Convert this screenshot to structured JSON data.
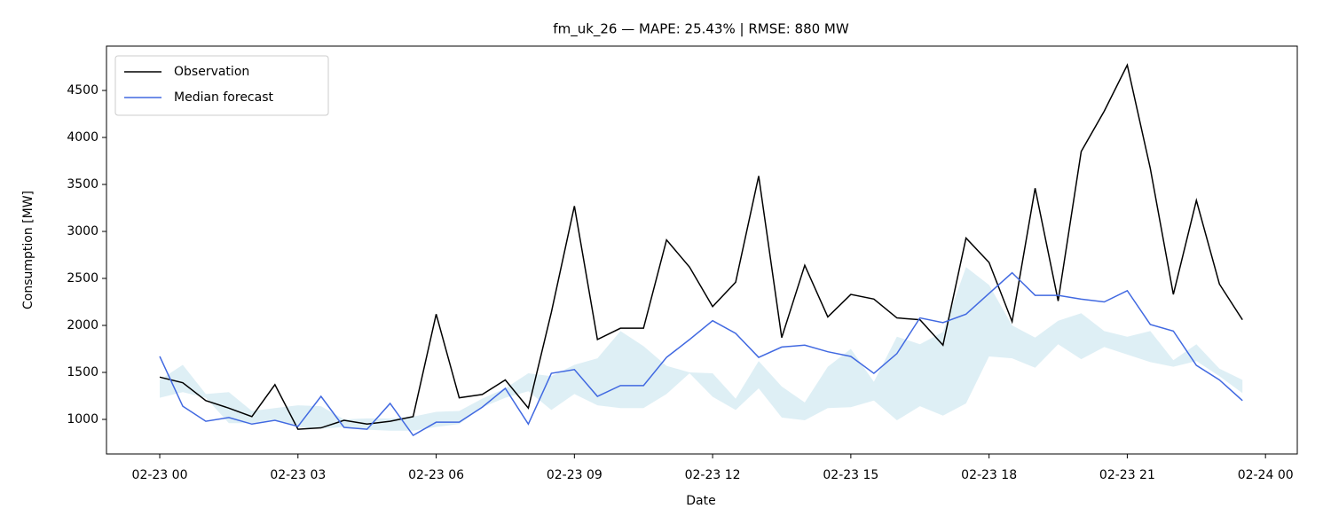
{
  "chart_data": {
    "type": "line",
    "title": "fm_uk_26 — MAPE: 25.43% | RMSE: 880 MW",
    "xlabel": "Date",
    "ylabel": "Consumption [MW]",
    "x": [
      0,
      0.5,
      1,
      1.5,
      2,
      2.5,
      3,
      3.5,
      4,
      4.5,
      5,
      5.5,
      6,
      6.5,
      7,
      7.5,
      8,
      8.5,
      9,
      9.5,
      10,
      10.5,
      11,
      11.5,
      12,
      12.5,
      13,
      13.5,
      14,
      14.5,
      15,
      15.5,
      16,
      16.5,
      17,
      17.5,
      18,
      18.5,
      19,
      19.5,
      20,
      20.5,
      21,
      21.5,
      22,
      22.5,
      23,
      23.5
    ],
    "series": [
      {
        "name": "Observation",
        "color": "#000000",
        "values": [
          1450,
          1390,
          1200,
          1120,
          1030,
          1370,
          895,
          910,
          990,
          950,
          980,
          1030,
          2120,
          1230,
          1265,
          1420,
          1120,
          2140,
          3270,
          1850,
          1970,
          1970,
          2910,
          2620,
          2200,
          2460,
          3590,
          1870,
          2640,
          2090,
          2330,
          2280,
          2080,
          2060,
          1790,
          2930,
          2670,
          2040,
          3460,
          2260,
          3850,
          4280,
          4770,
          3670,
          2330,
          3330,
          2440,
          2060
        ]
      },
      {
        "name": "Median forecast",
        "color": "#4169e1",
        "values": [
          1670,
          1140,
          980,
          1020,
          950,
          990,
          925,
          1245,
          915,
          895,
          1170,
          830,
          970,
          970,
          1130,
          1330,
          950,
          1490,
          1530,
          1245,
          1360,
          1360,
          1660,
          1850,
          2050,
          1915,
          1660,
          1770,
          1790,
          1720,
          1670,
          1490,
          1700,
          2080,
          2030,
          2120,
          2340,
          2560,
          2320,
          2320,
          2280,
          2250,
          2370,
          2010,
          1940,
          1575,
          1420,
          1200
        ]
      }
    ],
    "band": {
      "color": "#add8e6",
      "lower": [
        1230,
        1290,
        1230,
        960,
        960,
        1000,
        920,
        900,
        920,
        890,
        880,
        880,
        920,
        950,
        1130,
        1230,
        1300,
        1100,
        1270,
        1150,
        1120,
        1120,
        1270,
        1490,
        1240,
        1100,
        1330,
        1020,
        990,
        1120,
        1130,
        1200,
        990,
        1140,
        1040,
        1170,
        1670,
        1650,
        1550,
        1800,
        1640,
        1770,
        1690,
        1610,
        1560,
        1620,
        1460,
        1280
      ],
      "upper": [
        1420,
        1580,
        1270,
        1290,
        1090,
        1120,
        1150,
        1140,
        1000,
        1010,
        1010,
        1030,
        1080,
        1090,
        1220,
        1330,
        1490,
        1460,
        1580,
        1650,
        1940,
        1780,
        1570,
        1500,
        1490,
        1220,
        1620,
        1350,
        1180,
        1560,
        1750,
        1400,
        1880,
        1800,
        1930,
        2620,
        2430,
        2000,
        1870,
        2050,
        2130,
        1940,
        1880,
        1940,
        1630,
        1800,
        1540,
        1420
      ]
    },
    "xlim": [
      -1.156,
      24.69
    ],
    "ylim": [
      632,
      4972
    ],
    "xticks": [
      {
        "value": 0,
        "label": "02-23 00"
      },
      {
        "value": 3,
        "label": "02-23 03"
      },
      {
        "value": 6,
        "label": "02-23 06"
      },
      {
        "value": 9,
        "label": "02-23 09"
      },
      {
        "value": 12,
        "label": "02-23 12"
      },
      {
        "value": 15,
        "label": "02-23 15"
      },
      {
        "value": 18,
        "label": "02-23 18"
      },
      {
        "value": 21,
        "label": "02-23 21"
      },
      {
        "value": 24,
        "label": "02-24 00"
      }
    ],
    "yticks": [
      1000,
      1500,
      2000,
      2500,
      3000,
      3500,
      4000,
      4500
    ],
    "legend": "upper left"
  }
}
